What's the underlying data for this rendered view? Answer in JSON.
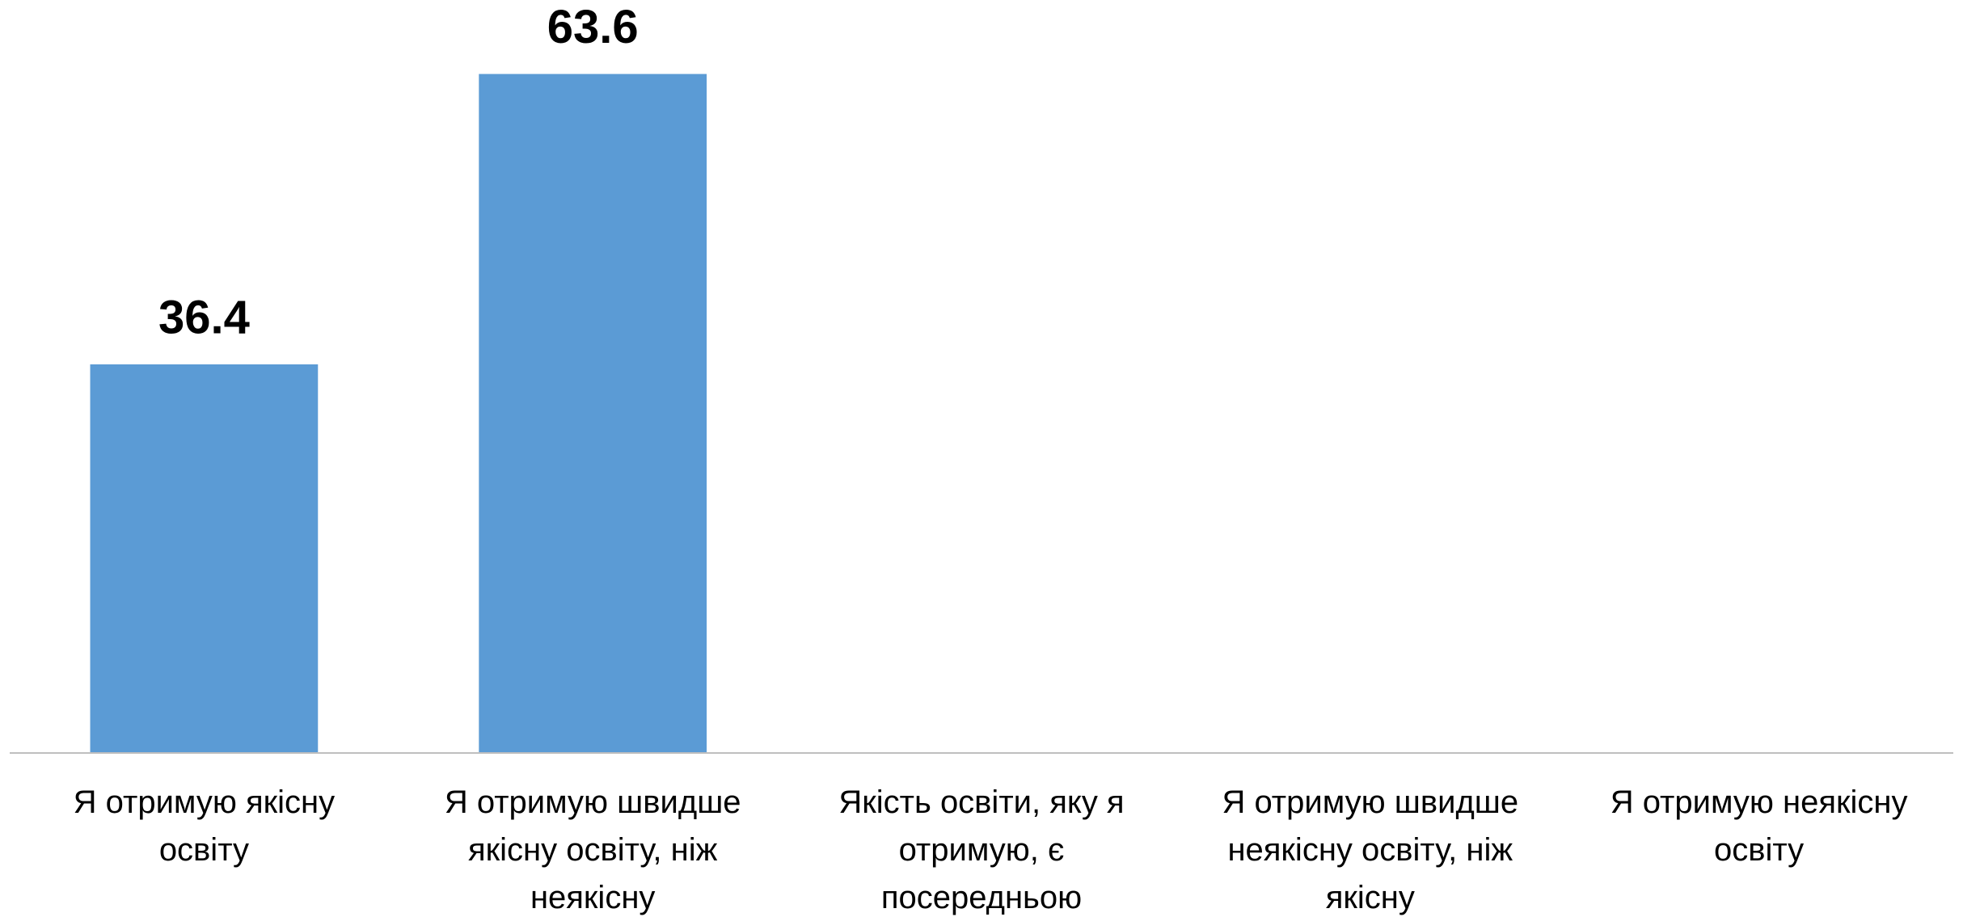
{
  "chart_data": {
    "type": "bar",
    "categories": [
      "Я отримую якісну освіту",
      "Я отримую швидше якісну освіту, ніж неякісну",
      "Якість освіти, яку я отримую, є посередньою",
      "Я отримую швидше неякісну освіту, ніж якісну",
      "Я отримую неякісну освіту"
    ],
    "values": [
      36.4,
      63.6,
      null,
      null,
      null
    ],
    "color": "#5b9bd5",
    "ylim": [
      0,
      70
    ]
  }
}
